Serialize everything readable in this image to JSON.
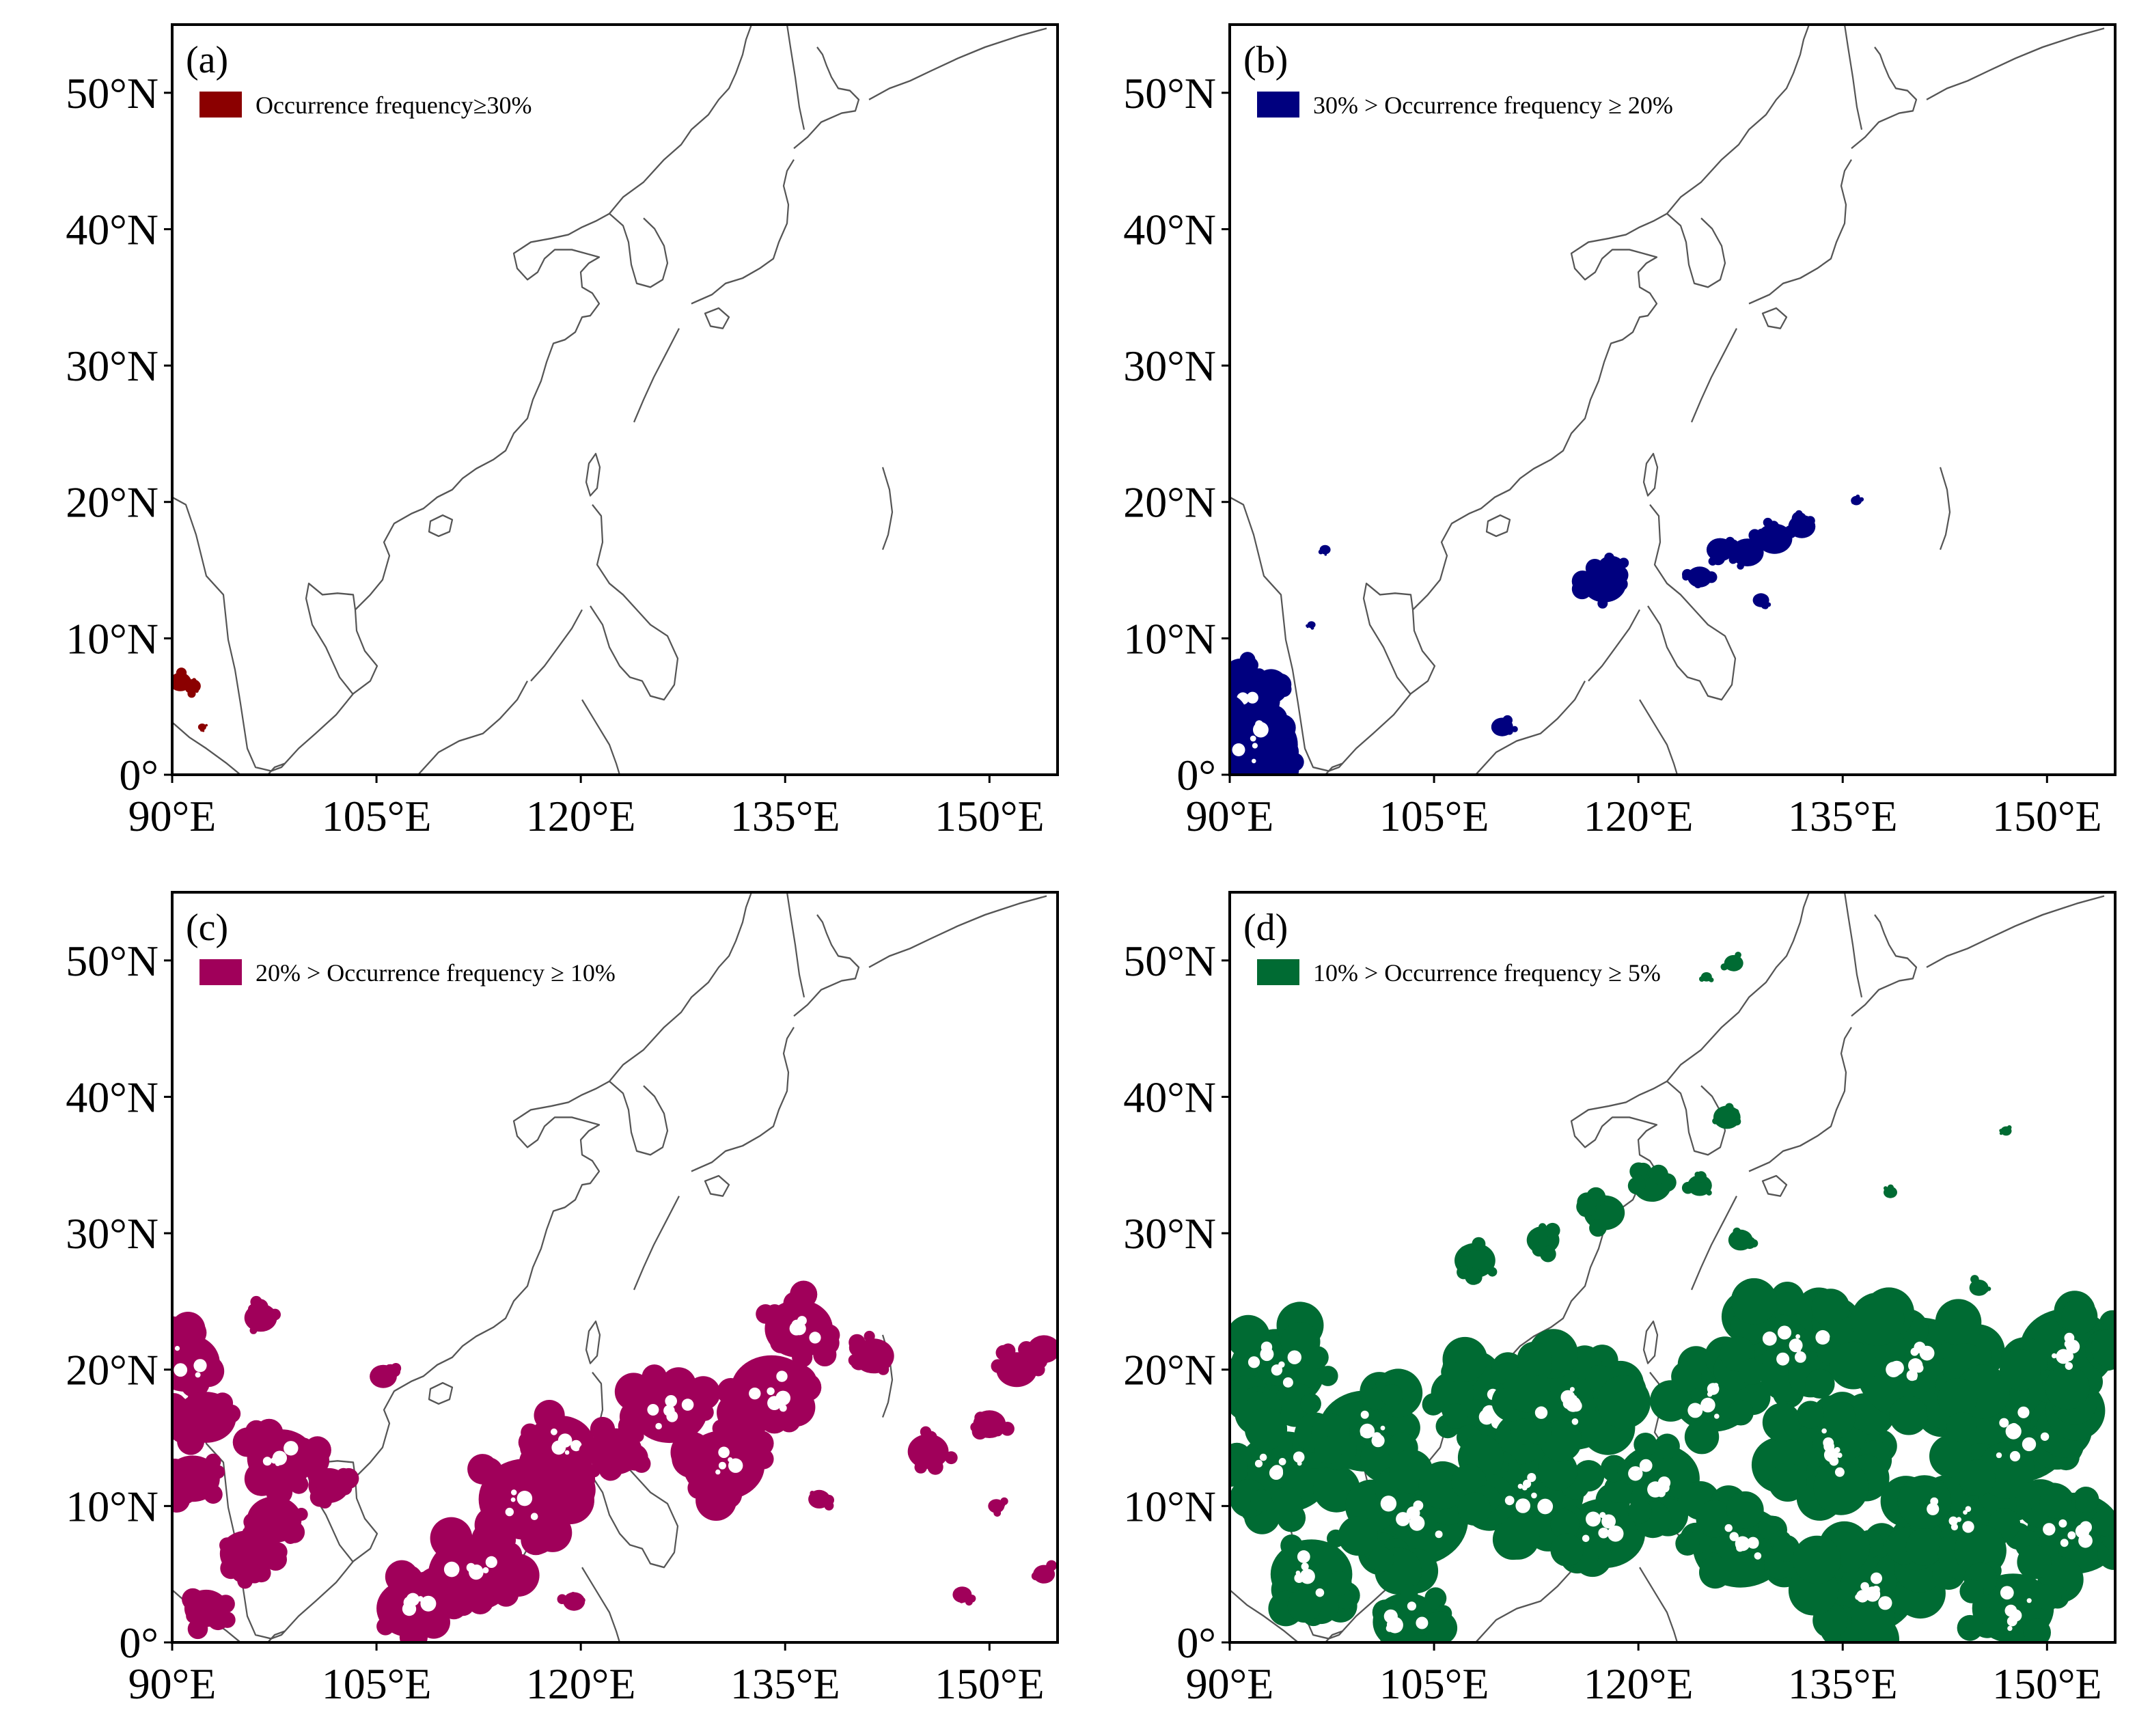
{
  "figure": {
    "panels": [
      {
        "id": "a",
        "label": "(a)",
        "legend": "Occurrence frequency≥30%",
        "color": "#8b0000",
        "density": "very-low"
      },
      {
        "id": "b",
        "label": "(b)",
        "legend": "30% > Occurrence frequency ≥ 20%",
        "color": "#00007f",
        "density": "low"
      },
      {
        "id": "c",
        "label": "(c)",
        "legend": "20% > Occurrence frequency ≥ 10%",
        "color": "#a0005a",
        "density": "medium"
      },
      {
        "id": "d",
        "label": "(d)",
        "legend": "10% > Occurrence frequency ≥ 5%",
        "color": "#006b33",
        "density": "high"
      }
    ]
  },
  "chart_data": {
    "type": "map",
    "projection": "equirectangular",
    "lon_range": [
      90,
      155
    ],
    "lat_range": [
      0,
      55
    ],
    "lon_ticks": [
      90,
      105,
      120,
      135,
      150
    ],
    "lon_tick_labels": [
      "90°E",
      "105°E",
      "120°E",
      "135°E",
      "150°E"
    ],
    "lat_ticks": [
      0,
      10,
      20,
      30,
      40,
      50
    ],
    "lat_tick_labels": [
      "0°",
      "10°N",
      "20°N",
      "30°N",
      "40°N",
      "50°N"
    ],
    "regions": {
      "a": [
        {
          "lon": 90.6,
          "lat": 6.8,
          "r": 0.8
        },
        {
          "lon": 91.5,
          "lat": 6.5,
          "r": 0.6
        },
        {
          "lon": 92.2,
          "lat": 3.5,
          "r": 0.3
        }
      ],
      "b": [
        {
          "lon": 91.2,
          "lat": 5.5,
          "r": 2.5
        },
        {
          "lon": 92.0,
          "lat": 2.2,
          "r": 3.0
        },
        {
          "lon": 90.8,
          "lat": 7.5,
          "r": 1.2
        },
        {
          "lon": 117.5,
          "lat": 14.0,
          "r": 1.6
        },
        {
          "lon": 118.0,
          "lat": 15.2,
          "r": 1.0
        },
        {
          "lon": 126.0,
          "lat": 16.5,
          "r": 1.0
        },
        {
          "lon": 128.0,
          "lat": 16.3,
          "r": 1.2
        },
        {
          "lon": 130.0,
          "lat": 17.3,
          "r": 1.3
        },
        {
          "lon": 132.0,
          "lat": 18.2,
          "r": 1.0
        },
        {
          "lon": 124.5,
          "lat": 14.5,
          "r": 0.9
        },
        {
          "lon": 129.0,
          "lat": 12.8,
          "r": 0.6
        },
        {
          "lon": 110.0,
          "lat": 3.5,
          "r": 0.8
        },
        {
          "lon": 136.0,
          "lat": 20.1,
          "r": 0.4
        },
        {
          "lon": 97.0,
          "lat": 16.5,
          "r": 0.4
        },
        {
          "lon": 96.0,
          "lat": 11.0,
          "r": 0.3
        }
      ],
      "c": [
        {
          "lon": 91.0,
          "lat": 20.5,
          "r": 2.5
        },
        {
          "lon": 92.5,
          "lat": 16.5,
          "r": 2.2
        },
        {
          "lon": 91.5,
          "lat": 12.0,
          "r": 2.0
        },
        {
          "lon": 95.5,
          "lat": 6.5,
          "r": 2.0
        },
        {
          "lon": 98.0,
          "lat": 13.5,
          "r": 2.5
        },
        {
          "lon": 97.5,
          "lat": 9.0,
          "r": 2.0
        },
        {
          "lon": 92.5,
          "lat": 2.5,
          "r": 1.6
        },
        {
          "lon": 96.5,
          "lat": 23.8,
          "r": 1.2
        },
        {
          "lon": 112.0,
          "lat": 5.0,
          "r": 3.2
        },
        {
          "lon": 107.5,
          "lat": 2.5,
          "r": 2.5
        },
        {
          "lon": 116.0,
          "lat": 10.5,
          "r": 3.5
        },
        {
          "lon": 118.5,
          "lat": 14.5,
          "r": 2.5
        },
        {
          "lon": 122.5,
          "lat": 14.0,
          "r": 2.0
        },
        {
          "lon": 126.5,
          "lat": 17.0,
          "r": 2.8
        },
        {
          "lon": 130.5,
          "lat": 13.0,
          "r": 3.0
        },
        {
          "lon": 134.0,
          "lat": 18.5,
          "r": 3.0
        },
        {
          "lon": 136.0,
          "lat": 23.0,
          "r": 2.5
        },
        {
          "lon": 141.5,
          "lat": 21.0,
          "r": 1.5
        },
        {
          "lon": 145.5,
          "lat": 14.0,
          "r": 1.5
        },
        {
          "lon": 150.0,
          "lat": 16.0,
          "r": 1.2
        },
        {
          "lon": 152.0,
          "lat": 20.0,
          "r": 1.5
        },
        {
          "lon": 154.0,
          "lat": 21.5,
          "r": 1.2
        },
        {
          "lon": 101.5,
          "lat": 11.5,
          "r": 1.5
        },
        {
          "lon": 105.5,
          "lat": 19.5,
          "r": 1.0
        },
        {
          "lon": 137.5,
          "lat": 10.5,
          "r": 0.8
        },
        {
          "lon": 150.5,
          "lat": 10.0,
          "r": 0.6
        },
        {
          "lon": 154.0,
          "lat": 5.0,
          "r": 0.8
        },
        {
          "lon": 148.0,
          "lat": 3.5,
          "r": 0.7
        },
        {
          "lon": 119.5,
          "lat": 3.0,
          "r": 0.8
        }
      ],
      "d": [
        {
          "lon": 93.5,
          "lat": 20.0,
          "r": 3.5
        },
        {
          "lon": 94.0,
          "lat": 12.5,
          "r": 3.5
        },
        {
          "lon": 96.0,
          "lat": 5.0,
          "r": 3.0
        },
        {
          "lon": 100.0,
          "lat": 15.5,
          "r": 3.5
        },
        {
          "lon": 103.5,
          "lat": 9.0,
          "r": 4.0
        },
        {
          "lon": 103.0,
          "lat": 1.5,
          "r": 2.5
        },
        {
          "lon": 109.0,
          "lat": 17.5,
          "r": 3.5
        },
        {
          "lon": 112.0,
          "lat": 11.0,
          "r": 4.0
        },
        {
          "lon": 115.0,
          "lat": 17.5,
          "r": 4.0
        },
        {
          "lon": 117.5,
          "lat": 8.0,
          "r": 3.0
        },
        {
          "lon": 121.5,
          "lat": 12.0,
          "r": 3.0
        },
        {
          "lon": 125.5,
          "lat": 18.0,
          "r": 3.0
        },
        {
          "lon": 127.5,
          "lat": 7.0,
          "r": 3.5
        },
        {
          "lon": 131.5,
          "lat": 22.0,
          "r": 4.0
        },
        {
          "lon": 134.5,
          "lat": 14.0,
          "r": 4.0
        },
        {
          "lon": 136.5,
          "lat": 4.0,
          "r": 4.0
        },
        {
          "lon": 140.5,
          "lat": 20.0,
          "r": 4.5
        },
        {
          "lon": 143.5,
          "lat": 9.0,
          "r": 4.0
        },
        {
          "lon": 147.5,
          "lat": 15.5,
          "r": 4.5
        },
        {
          "lon": 151.5,
          "lat": 21.5,
          "r": 3.5
        },
        {
          "lon": 152.0,
          "lat": 8.0,
          "r": 3.5
        },
        {
          "lon": 147.5,
          "lat": 2.5,
          "r": 3.0
        },
        {
          "lon": 108.0,
          "lat": 28.0,
          "r": 1.5
        },
        {
          "lon": 113.0,
          "lat": 29.5,
          "r": 1.2
        },
        {
          "lon": 117.5,
          "lat": 31.5,
          "r": 1.5
        },
        {
          "lon": 121.0,
          "lat": 33.5,
          "r": 1.4
        },
        {
          "lon": 124.5,
          "lat": 33.5,
          "r": 0.9
        },
        {
          "lon": 127.5,
          "lat": 29.5,
          "r": 0.9
        },
        {
          "lon": 126.5,
          "lat": 38.5,
          "r": 1.0
        },
        {
          "lon": 127.0,
          "lat": 49.8,
          "r": 0.7
        },
        {
          "lon": 125.0,
          "lat": 48.8,
          "r": 0.4
        },
        {
          "lon": 138.5,
          "lat": 33.0,
          "r": 0.5
        },
        {
          "lon": 147.0,
          "lat": 37.5,
          "r": 0.4
        },
        {
          "lon": 145.0,
          "lat": 26.0,
          "r": 0.7
        }
      ]
    }
  }
}
